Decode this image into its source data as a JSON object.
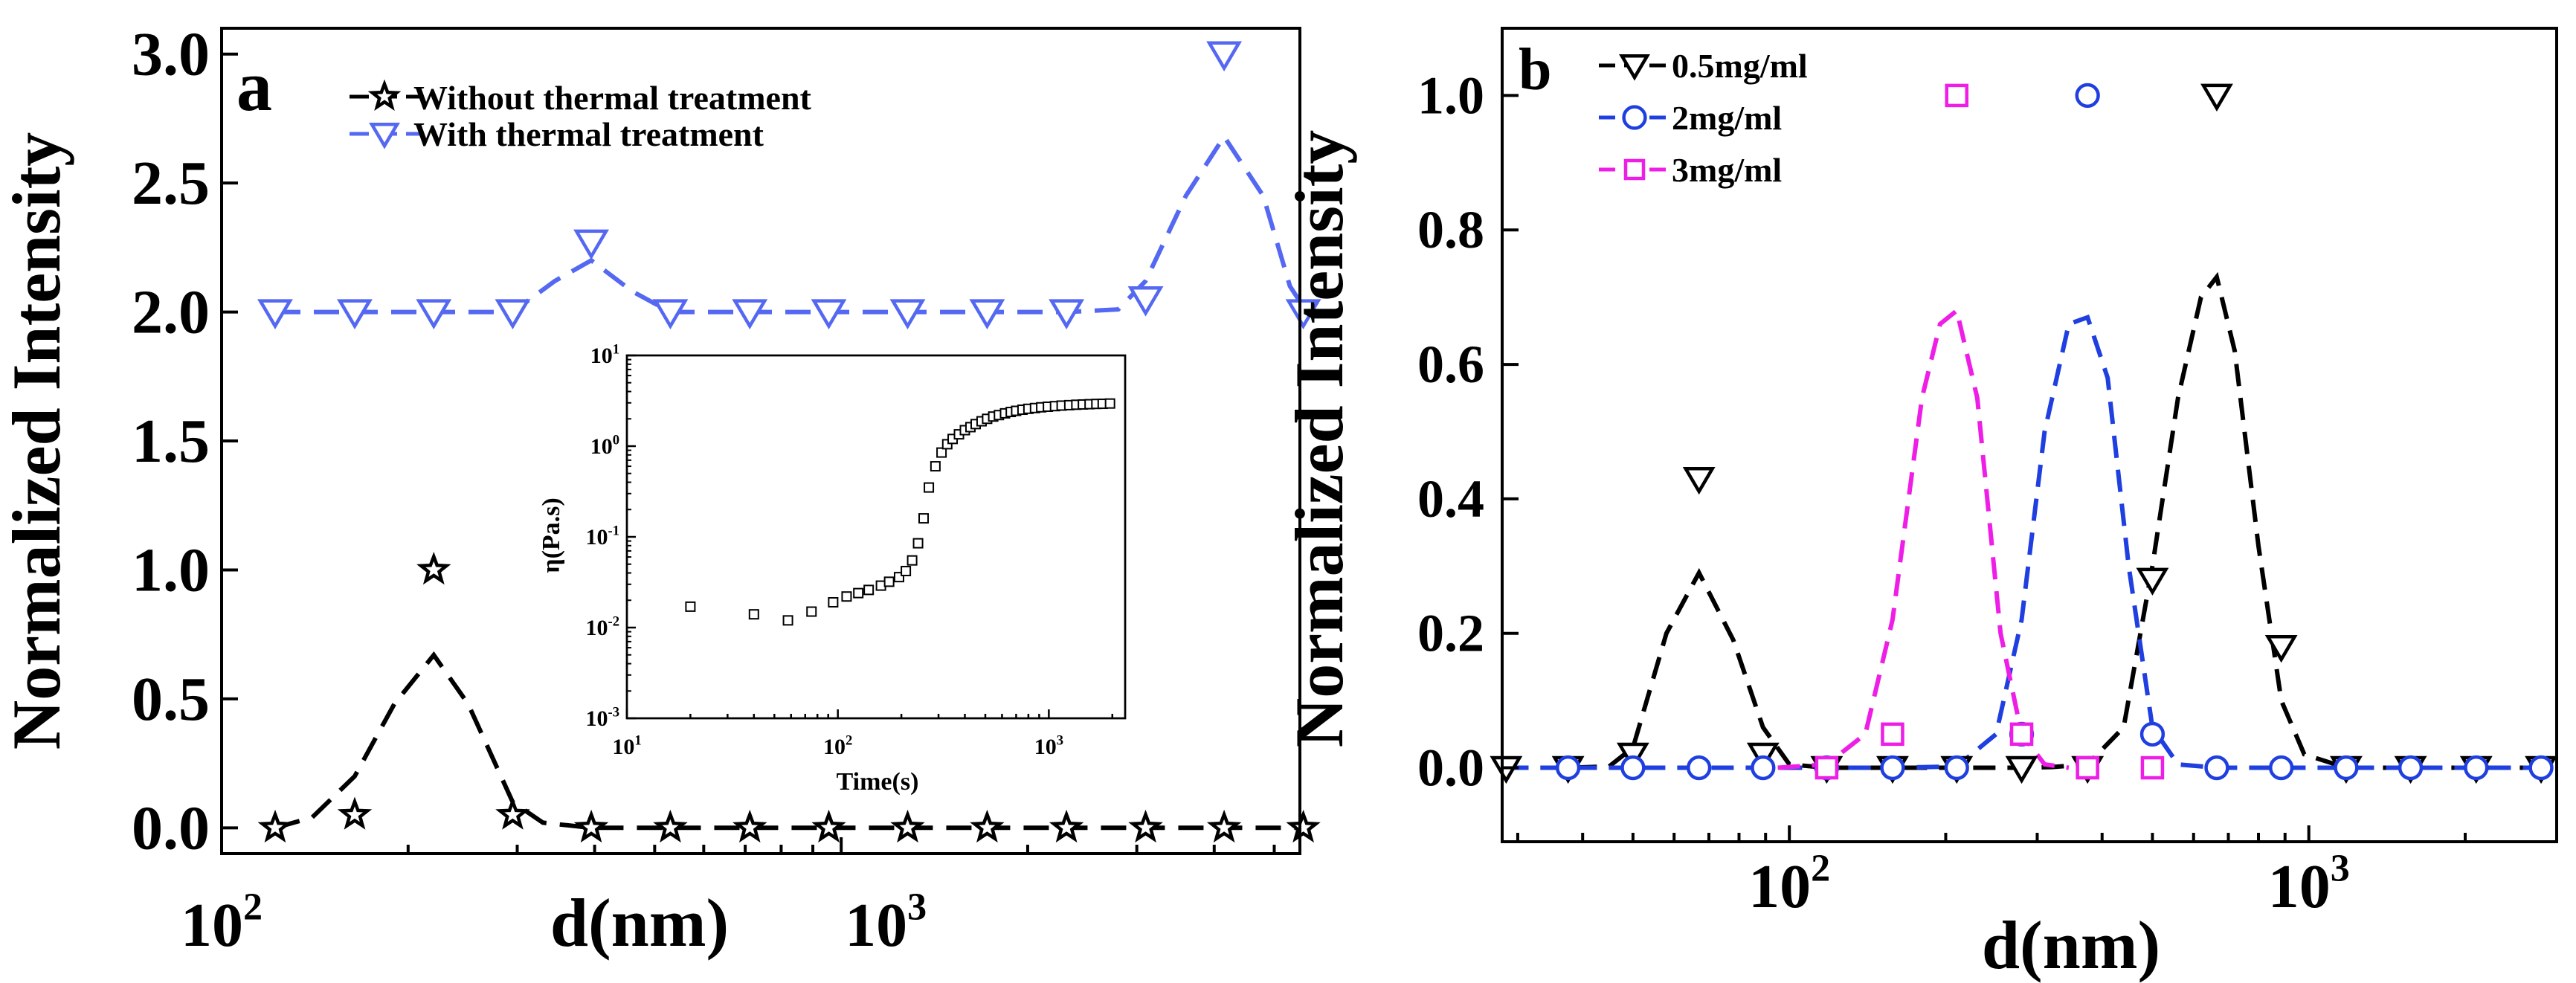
{
  "chart_data": [
    {
      "panel_label": "a",
      "type": "line",
      "xscale": "log",
      "xlabel": "d(nm)",
      "ylabel": "Normalized Intensity",
      "xlim": [
        100,
        5500
      ],
      "ylim": [
        -0.1,
        3.1
      ],
      "x_tick_labels": [
        "10",
        "10"
      ],
      "x_tick_exponents": [
        "2",
        "3"
      ],
      "x_tick_values": [
        100,
        1000
      ],
      "y_ticks": [
        0.0,
        0.5,
        1.0,
        1.5,
        2.0,
        2.5,
        3.0
      ],
      "y_tick_labels": [
        "0.0",
        "0.5",
        "1.0",
        "1.5",
        "2.0",
        "2.5",
        "3.0"
      ],
      "legend_position": "top-left",
      "series": [
        {
          "name": "Without  thermal treatment",
          "color": "#000000",
          "marker": "star",
          "x": [
            122,
            164,
            220,
            295,
            395,
            530,
            712,
            955,
            1280,
            1720,
            2310,
            3100,
            4150,
            5570
          ],
          "y": [
            0,
            0.05,
            1.0,
            0.05,
            0,
            0,
            0,
            0,
            0,
            0,
            0,
            0,
            0,
            0
          ],
          "fit_x": [
            122,
            140,
            164,
            190,
            220,
            250,
            295,
            330,
            395,
            530,
            712,
            955,
            1280,
            1720,
            2310,
            3100,
            4150,
            5570
          ],
          "fit_y": [
            0,
            0.04,
            0.2,
            0.48,
            0.67,
            0.48,
            0.1,
            0.02,
            0,
            0,
            0,
            0,
            0,
            0,
            0,
            0,
            0,
            0
          ]
        },
        {
          "name": "With  thermal treatment",
          "color": "#5468f2",
          "marker": "triangle-down",
          "x": [
            122,
            164,
            220,
            295,
            395,
            530,
            712,
            955,
            1280,
            1720,
            2310,
            3100,
            4150,
            5570
          ],
          "y": [
            2.0,
            2.0,
            2.0,
            2.0,
            2.27,
            2.0,
            2.0,
            2.0,
            2.0,
            2.0,
            2.0,
            2.05,
            3.0,
            2.0
          ],
          "fit_x": [
            122,
            164,
            220,
            295,
            345,
            395,
            460,
            530,
            712,
            955,
            1280,
            1720,
            2310,
            2800,
            3100,
            3600,
            4150,
            4800,
            5300,
            5570
          ],
          "fit_y": [
            2.0,
            2.0,
            2.0,
            2.0,
            2.12,
            2.2,
            2.08,
            2.0,
            2.0,
            2.0,
            2.0,
            2.0,
            2.0,
            2.01,
            2.12,
            2.45,
            2.68,
            2.45,
            2.1,
            2.02
          ]
        }
      ],
      "inset": {
        "type": "scatter",
        "xscale": "log",
        "yscale": "log",
        "xlabel": "Time(s)",
        "ylabel": "η(Pa.s)",
        "xlim": [
          10,
          2300
        ],
        "ylim": [
          0.001,
          10
        ],
        "x_tick_labels": [
          "10",
          "10",
          "10"
        ],
        "x_tick_exponents": [
          "1",
          "2",
          "3"
        ],
        "x_tick_values": [
          10,
          100,
          1000
        ],
        "y_tick_labels": [
          "10",
          "10",
          "10",
          "10",
          "10"
        ],
        "y_tick_exponents": [
          "-3",
          "-2",
          "-1",
          "0",
          "1"
        ],
        "y_tick_values": [
          0.001,
          0.01,
          0.1,
          1,
          10
        ],
        "marker": "open-square",
        "color": "#000000",
        "x": [
          20,
          40,
          58,
          75,
          95,
          110,
          125,
          140,
          160,
          175,
          195,
          210,
          225,
          240,
          255,
          270,
          290,
          310,
          330,
          350,
          375,
          400,
          425,
          450,
          480,
          510,
          545,
          580,
          620,
          660,
          700,
          750,
          800,
          860,
          920,
          990,
          1070,
          1150,
          1250,
          1350,
          1450,
          1560,
          1680,
          1800,
          1950
        ],
        "y": [
          0.017,
          0.014,
          0.012,
          0.015,
          0.019,
          0.022,
          0.024,
          0.026,
          0.029,
          0.032,
          0.036,
          0.042,
          0.055,
          0.085,
          0.16,
          0.35,
          0.6,
          0.85,
          1.05,
          1.2,
          1.35,
          1.5,
          1.62,
          1.75,
          1.88,
          2.0,
          2.12,
          2.2,
          2.3,
          2.38,
          2.45,
          2.52,
          2.58,
          2.63,
          2.68,
          2.72,
          2.76,
          2.8,
          2.83,
          2.86,
          2.88,
          2.9,
          2.92,
          2.93,
          2.95
        ]
      }
    },
    {
      "panel_label": "b",
      "type": "line",
      "xscale": "log",
      "xlabel": "d(nm)",
      "ylabel": "Normalized Intensity",
      "xlim": [
        28,
        3000
      ],
      "ylim": [
        -0.11,
        1.1
      ],
      "x_tick_labels": [
        "10",
        "10"
      ],
      "x_tick_exponents": [
        "2",
        "3"
      ],
      "x_tick_values": [
        100,
        1000
      ],
      "y_ticks": [
        0.0,
        0.2,
        0.4,
        0.6,
        0.8,
        1.0
      ],
      "y_tick_labels": [
        "0.0",
        "0.2",
        "0.4",
        "0.6",
        "0.8",
        "1.0"
      ],
      "legend_position": "top-left",
      "series": [
        {
          "name": "0.5mg/ml",
          "color": "#000000",
          "marker": "triangle-down",
          "x": [
            28.5,
            37.5,
            50,
            67,
            89,
            118,
            158,
            210,
            280,
            375,
            500,
            665,
            885,
            1180,
            1570,
            2100,
            2800
          ],
          "y": [
            0,
            0,
            0.02,
            0.43,
            0.02,
            0,
            0,
            0,
            0,
            0,
            0.28,
            1.0,
            0.18,
            0,
            0,
            0,
            0
          ],
          "fit_x": [
            28.5,
            37.5,
            45,
            50,
            58,
            67,
            78,
            89,
            100,
            118,
            158,
            210,
            280,
            320,
            375,
            440,
            500,
            560,
            620,
            665,
            720,
            800,
            885,
            980,
            1180,
            1570,
            2100,
            2800
          ],
          "fit_y": [
            0,
            0,
            0.002,
            0.03,
            0.2,
            0.29,
            0.19,
            0.06,
            0.005,
            0,
            0,
            0,
            0,
            0.001,
            0.005,
            0.06,
            0.3,
            0.55,
            0.7,
            0.73,
            0.62,
            0.33,
            0.1,
            0.02,
            0,
            0,
            0,
            0
          ]
        },
        {
          "name": "2mg/ml",
          "color": "#1f3fe0",
          "marker": "circle",
          "x": [
            37.5,
            50,
            67,
            89,
            118,
            158,
            210,
            280,
            375,
            500,
            665,
            885,
            1180,
            1570,
            2100,
            2800
          ],
          "y": [
            0,
            0,
            0,
            0,
            0,
            0,
            0,
            0.05,
            1.0,
            0.05,
            0,
            0,
            0,
            0,
            0,
            0
          ],
          "fit_x": [
            28.5,
            37.5,
            50,
            67,
            89,
            118,
            158,
            210,
            250,
            280,
            310,
            345,
            375,
            410,
            450,
            500,
            560,
            665,
            885,
            1180,
            1570,
            2100,
            2800
          ],
          "fit_y": [
            0,
            0,
            0,
            0,
            0,
            0,
            0,
            0.002,
            0.05,
            0.22,
            0.5,
            0.66,
            0.67,
            0.58,
            0.3,
            0.06,
            0.005,
            0,
            0,
            0,
            0,
            0,
            0
          ]
        },
        {
          "name": "3mg/ml",
          "color": "#ee1ee6",
          "marker": "square",
          "x": [
            118,
            158,
            210,
            280,
            375,
            500
          ],
          "y": [
            0,
            0.05,
            1.0,
            0.05,
            0,
            0
          ],
          "fit_x": [
            95,
            118,
            140,
            158,
            180,
            195,
            210,
            230,
            255,
            280,
            310,
            345
          ],
          "fit_y": [
            0,
            0.005,
            0.05,
            0.22,
            0.55,
            0.66,
            0.68,
            0.55,
            0.2,
            0.05,
            0.005,
            0
          ]
        }
      ]
    }
  ]
}
